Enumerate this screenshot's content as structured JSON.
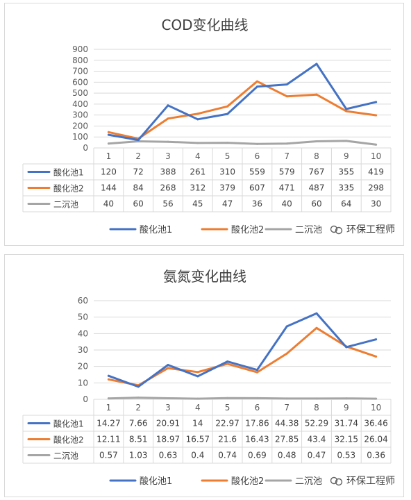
{
  "watermark": "环保工程师",
  "chart_data": [
    {
      "type": "line",
      "title": "COD变化曲线",
      "categories": [
        "1",
        "2",
        "3",
        "4",
        "5",
        "6",
        "7",
        "8",
        "9",
        "10"
      ],
      "ylim": [
        0,
        900
      ],
      "yticks": [
        0,
        100,
        200,
        300,
        400,
        500,
        600,
        700,
        800,
        900
      ],
      "grid": true,
      "legend": "bottom",
      "series": [
        {
          "name": "酸化池1",
          "color": "#4472C4",
          "values": [
            120,
            72,
            388,
            261,
            310,
            559,
            579,
            767,
            355,
            419
          ],
          "labels": [
            "120",
            "72",
            "388",
            "261",
            "310",
            "559",
            "579",
            "767",
            "355",
            "419"
          ]
        },
        {
          "name": "酸化池2",
          "color": "#ED7D31",
          "values": [
            144,
            84,
            268,
            312,
            379,
            607,
            471,
            487,
            335,
            298
          ],
          "labels": [
            "144",
            "84",
            "268",
            "312",
            "379",
            "607",
            "471",
            "487",
            "335",
            "298"
          ]
        },
        {
          "name": "二沉池",
          "color": "#A5A5A5",
          "values": [
            40,
            60,
            56,
            45,
            47,
            36,
            40,
            60,
            64,
            30
          ],
          "labels": [
            "40",
            "60",
            "56",
            "45",
            "47",
            "36",
            "40",
            "60",
            "64",
            "30"
          ]
        }
      ]
    },
    {
      "type": "line",
      "title": "氨氮变化曲线",
      "categories": [
        "1",
        "2",
        "3",
        "4",
        "5",
        "6",
        "7",
        "8",
        "9",
        "10"
      ],
      "ylim": [
        0,
        60
      ],
      "yticks": [
        0,
        10,
        20,
        30,
        40,
        50,
        60
      ],
      "grid": true,
      "legend": "bottom",
      "series": [
        {
          "name": "酸化池1",
          "color": "#4472C4",
          "values": [
            14.27,
            7.66,
            20.91,
            14,
            22.97,
            17.86,
            44.38,
            52.29,
            31.74,
            36.46
          ],
          "labels": [
            "14.27",
            "7.66",
            "20.91",
            "14",
            "22.97",
            "17.86",
            "44.38",
            "52.29",
            "31.74",
            "36.46"
          ]
        },
        {
          "name": "酸化池2",
          "color": "#ED7D31",
          "values": [
            12.11,
            8.51,
            18.97,
            16.57,
            21.6,
            16.43,
            27.85,
            43.4,
            32.15,
            26.04
          ],
          "labels": [
            "12.11",
            "8.51",
            "18.97",
            "16.57",
            "21.6",
            "16.43",
            "27.85",
            "43.4",
            "32.15",
            "26.04"
          ]
        },
        {
          "name": "二沉池",
          "color": "#A5A5A5",
          "values": [
            0.57,
            1.03,
            0.63,
            0.4,
            0.74,
            0.69,
            0.48,
            0.47,
            0.53,
            0.36
          ],
          "labels": [
            "0.57",
            "1.03",
            "0.63",
            "0.4",
            "0.74",
            "0.69",
            "0.48",
            "0.47",
            "0.53",
            "0.36"
          ]
        }
      ]
    }
  ]
}
